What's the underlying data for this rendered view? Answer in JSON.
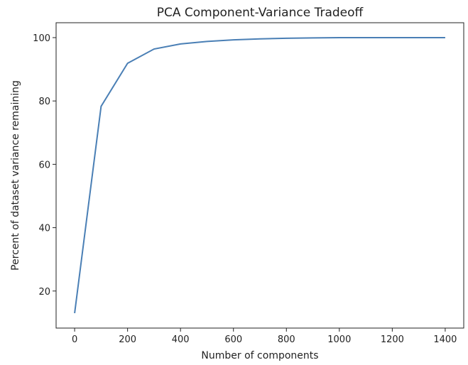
{
  "chart_data": {
    "type": "line",
    "title": "PCA Component-Variance Tradeoff",
    "x_label": "Number of components",
    "y_label": "Percent of dataset variance remaining",
    "series": [
      {
        "color": "#4a7fb5",
        "x": [
          0,
          100,
          200,
          300,
          400,
          500,
          600,
          700,
          800,
          900,
          1000,
          1100,
          1200,
          1300,
          1400
        ],
        "values": [
          13.0,
          78.3,
          91.9,
          96.4,
          98.0,
          98.8,
          99.3,
          99.6,
          99.8,
          99.9,
          100,
          100,
          100,
          100,
          100
        ]
      }
    ],
    "xlim": [
      -70,
      1470
    ],
    "ylim": [
      8.3,
      104.7
    ],
    "xticks": [
      0,
      200,
      400,
      600,
      800,
      1000,
      1200,
      1400
    ],
    "yticks": [
      20,
      40,
      60,
      80,
      100
    ]
  }
}
